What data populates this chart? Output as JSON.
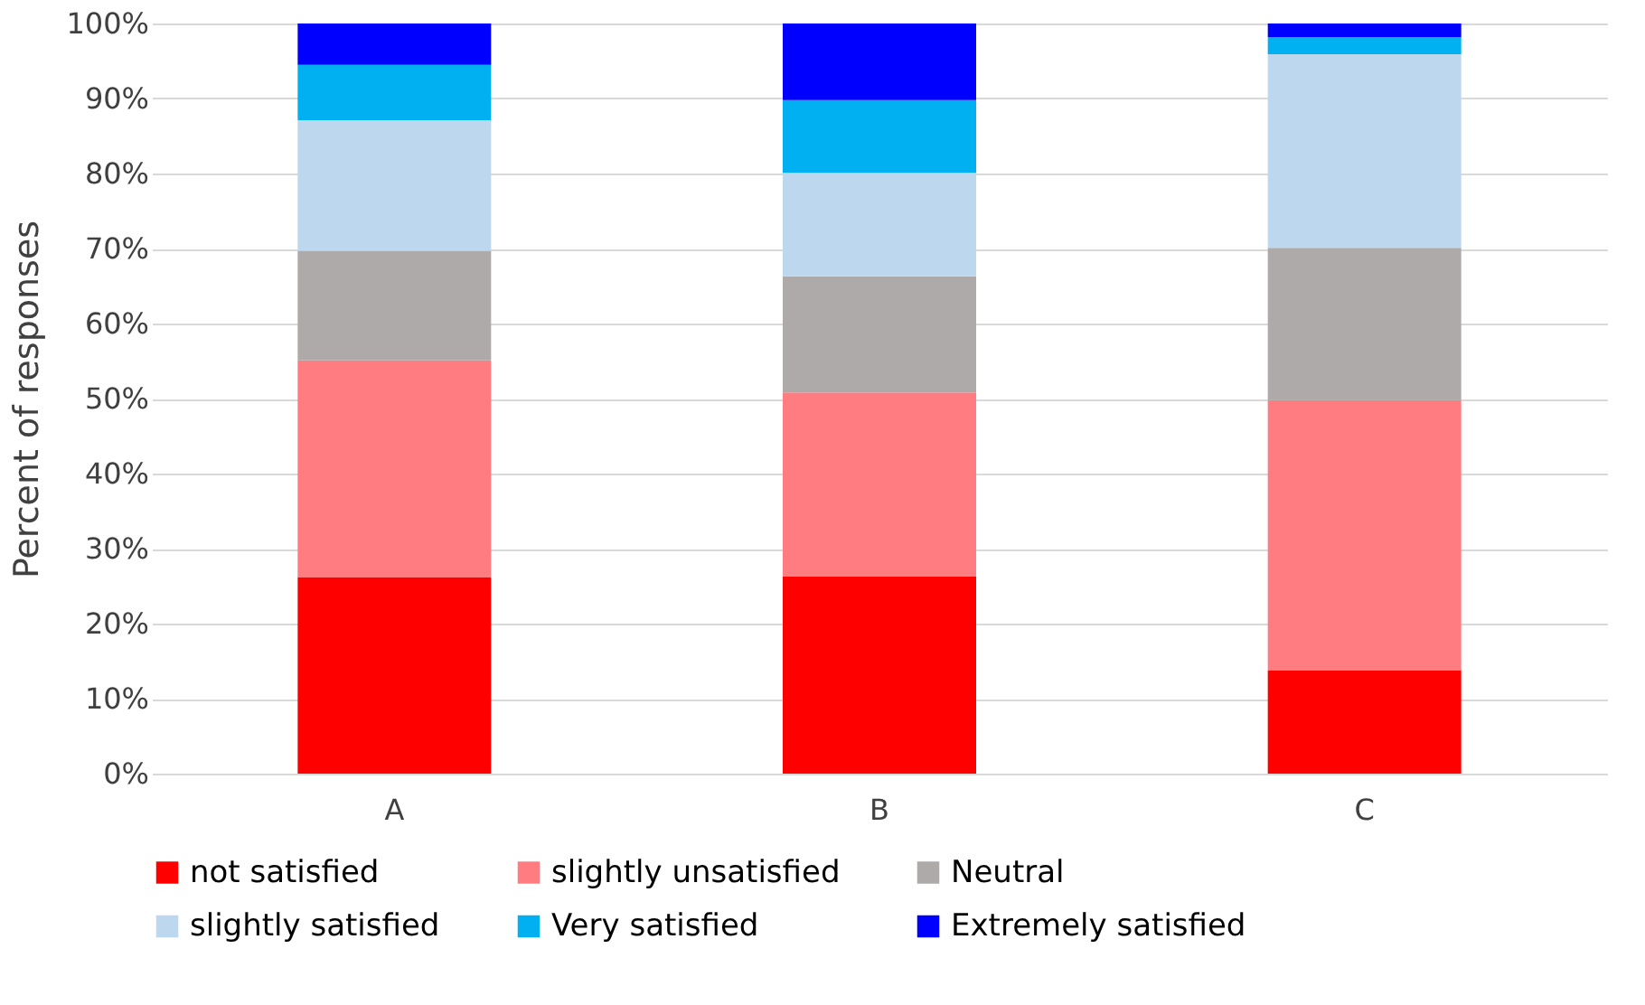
{
  "chart_data": {
    "type": "bar",
    "stacked": true,
    "ylabel": "Percent of  responses",
    "categories": [
      "A",
      "B",
      "C"
    ],
    "series": [
      {
        "name": "not satisfied",
        "color": "#ff0000",
        "values": [
          26.2,
          26.3,
          13.8
        ]
      },
      {
        "name": "slightly unsatisfied",
        "color": "#ff7c80",
        "values": [
          28.9,
          24.5,
          36.0
        ]
      },
      {
        "name": "Neutral",
        "color": "#aeaaaa",
        "values": [
          14.6,
          15.5,
          20.3
        ]
      },
      {
        "name": "slightly satisfied",
        "color": "#bdd7ee",
        "values": [
          17.4,
          13.8,
          25.8
        ]
      },
      {
        "name": "Very  satisfied",
        "color": "#00b0f0",
        "values": [
          7.4,
          9.7,
          2.3
        ]
      },
      {
        "name": "Extremely satisfied",
        "color": "#0000ff",
        "values": [
          5.5,
          10.2,
          1.8
        ]
      }
    ],
    "ylim": [
      0,
      100
    ],
    "yticks": [
      {
        "value": 0,
        "label": "0%"
      },
      {
        "value": 10,
        "label": "10%"
      },
      {
        "value": 20,
        "label": "20%"
      },
      {
        "value": 30,
        "label": "30%"
      },
      {
        "value": 40,
        "label": "40%"
      },
      {
        "value": 50,
        "label": "50%"
      },
      {
        "value": 60,
        "label": "60%"
      },
      {
        "value": 70,
        "label": "70%"
      },
      {
        "value": 80,
        "label": "80%"
      },
      {
        "value": 90,
        "label": "90%"
      },
      {
        "value": 100,
        "label": "100%"
      }
    ],
    "grid": "y",
    "legend": "bottom"
  }
}
